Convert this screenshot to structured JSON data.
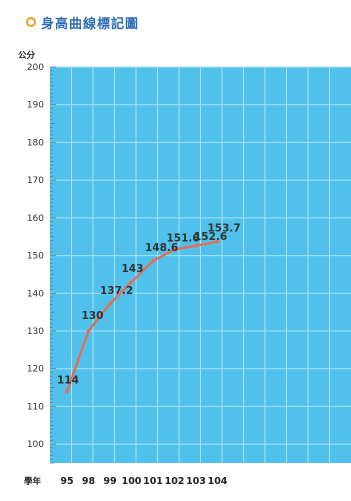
{
  "title": "身高曲線標記圖",
  "chart_data": {
    "type": "line",
    "title": "身高曲線標記圖",
    "ylabel": "公分",
    "xlabel": "學年",
    "ylim": [
      95,
      200
    ],
    "y_ticks": [
      100,
      110,
      120,
      130,
      140,
      150,
      160,
      170,
      180,
      190,
      200
    ],
    "x": [
      "95",
      "98",
      "99",
      "100",
      "101",
      "102",
      "103",
      "104"
    ],
    "grid": true,
    "series": [
      {
        "x": [
          "95",
          "98",
          "99",
          "100",
          "101",
          "102",
          "103",
          "104"
        ],
        "values": [
          114,
          130,
          137.2,
          143,
          148.6,
          151.6,
          152.6,
          153.7
        ]
      }
    ],
    "data_labels": [
      "114",
      "130",
      "137.2",
      "143",
      "148.6",
      "151.6",
      "152.6",
      "153.7"
    ],
    "colors": {
      "plot_bg": "#4fc1ea",
      "grid": "#a9e0f5",
      "line": "#ee6a4a",
      "title": "#2f6fb5",
      "bullet": "#f0a020"
    }
  }
}
